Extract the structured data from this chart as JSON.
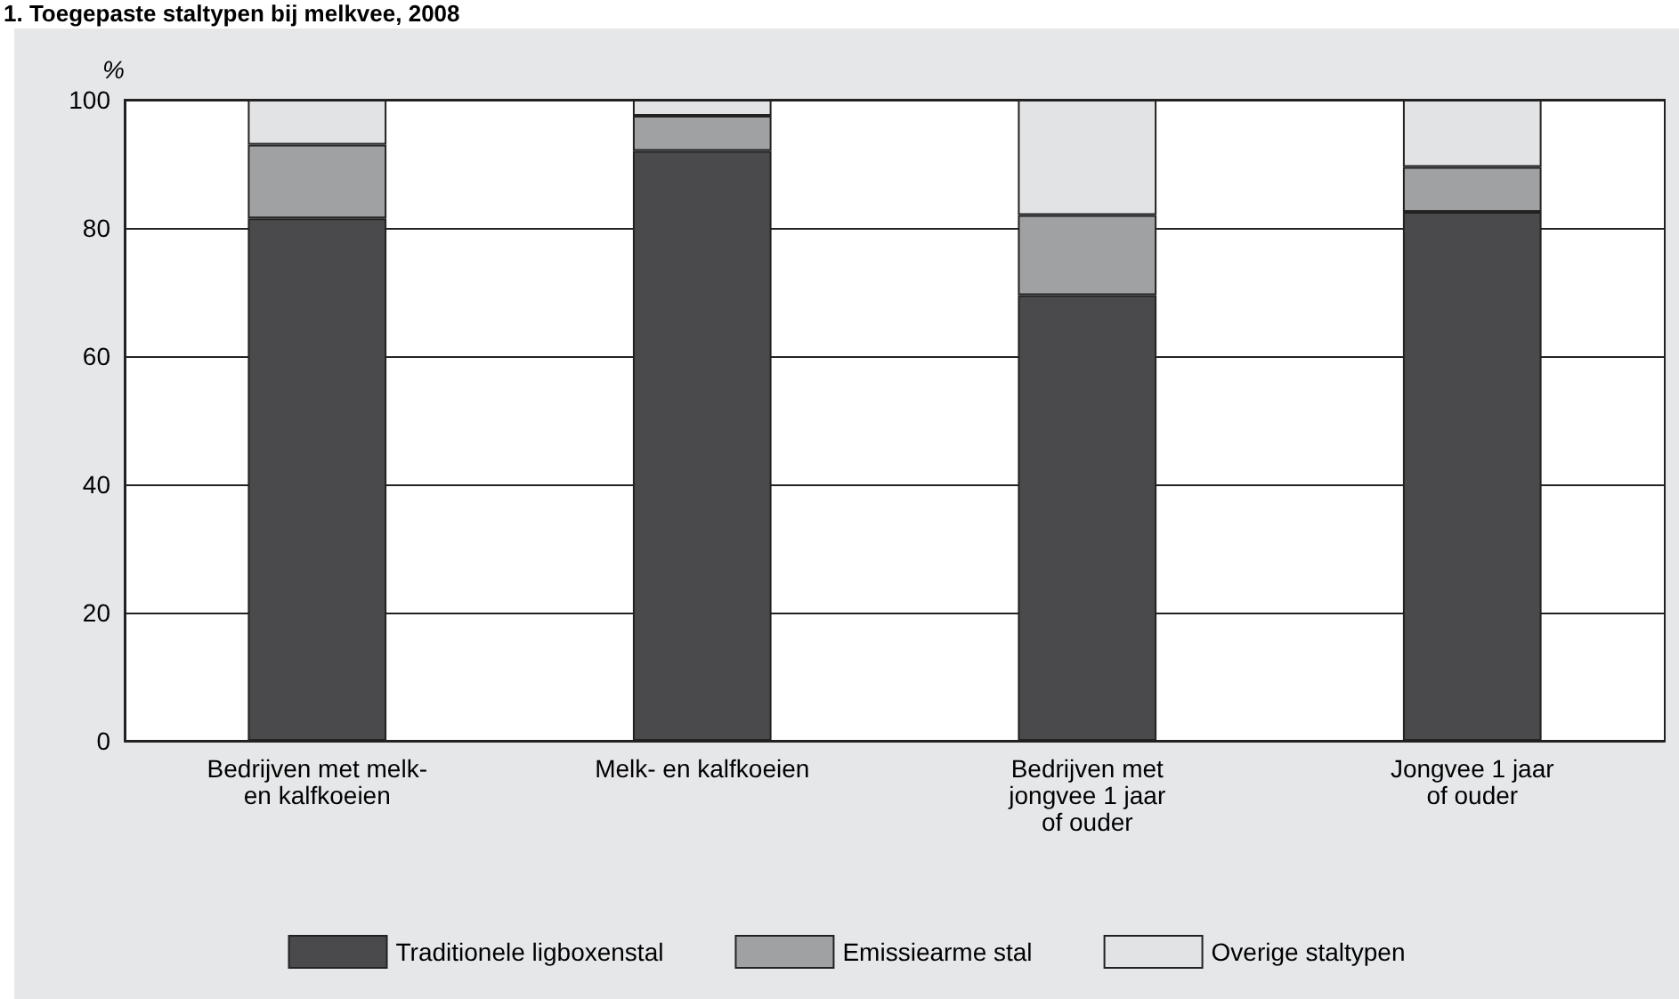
{
  "chart_data": {
    "type": "bar",
    "title": "1. Toegepaste staltypen bij melkvee, 2008",
    "ylabel": "%",
    "categories": [
      "Bedrijven met melk-\nen kalfkoeien",
      "Melk- en kalfkoeien",
      "Bedrijven met\njongvee 1 jaar\nof ouder",
      "Jongvee 1 jaar\nof ouder"
    ],
    "stacked": true,
    "series": [
      {
        "name": "Traditionele ligboxenstal",
        "color": "#4a4a4c",
        "values": [
          81.5,
          92,
          69.5,
          82.5
        ]
      },
      {
        "name": "Emissiearme stal",
        "color": "#a0a1a3",
        "values": [
          11.5,
          5.5,
          12.5,
          7
        ]
      },
      {
        "name": "Overige staltypen",
        "color": "#e2e3e5",
        "values": [
          7,
          2.5,
          18,
          10.5
        ]
      }
    ],
    "ylim": [
      0,
      100
    ],
    "yticks": [
      0,
      20,
      40,
      60,
      80,
      100
    ],
    "grid": "y",
    "legend": "bottom"
  }
}
